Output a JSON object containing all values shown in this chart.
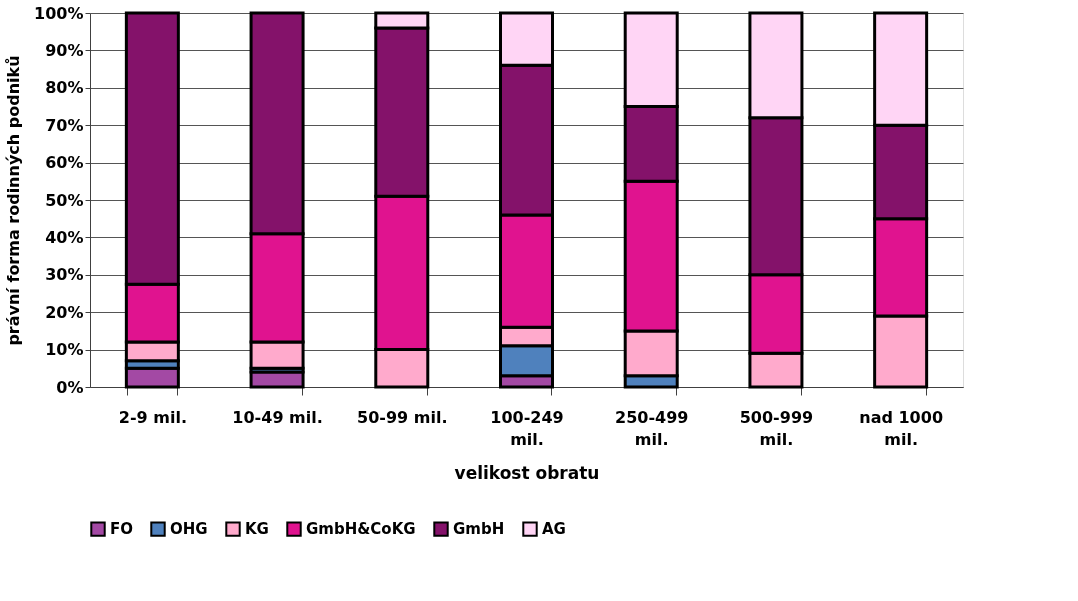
{
  "chart_data": {
    "type": "bar",
    "stacked": true,
    "xlabel": "velikost obratu",
    "ylabel": "právní forma rodinných podniků",
    "categories": [
      "2-9 mil.",
      "10-49 mil.",
      "50-99 mil.",
      "100-249 mil.",
      "250-499 mil.",
      "500-999 mil.",
      "nad 1000 mil."
    ],
    "series": [
      {
        "name": "FO",
        "color": "#a349a4",
        "values": [
          5,
          4,
          null,
          3,
          null,
          null,
          null
        ]
      },
      {
        "name": "OHG",
        "color": "#4f81bd",
        "values": [
          2,
          1,
          null,
          8,
          3,
          null,
          null
        ]
      },
      {
        "name": "KG",
        "color": "#ffaacc",
        "values": [
          5,
          7,
          10,
          5,
          12,
          9,
          19
        ]
      },
      {
        "name": "GmbH&CoKG",
        "color": "#e0138f",
        "values": [
          15.5,
          29,
          41,
          30,
          40,
          21,
          26
        ]
      },
      {
        "name": "GmbH",
        "color": "#84126a",
        "values": [
          72.5,
          59,
          45,
          40,
          20,
          42,
          25
        ]
      },
      {
        "name": "AG",
        "color": "#ffd5f5",
        "values": [
          null,
          null,
          4,
          14,
          25,
          28,
          30
        ]
      }
    ],
    "ylim": [
      0,
      100
    ],
    "yticks": [
      {
        "value": 0,
        "label": "0%"
      },
      {
        "value": 10,
        "label": "10%"
      },
      {
        "value": 20,
        "label": "20%"
      },
      {
        "value": 30,
        "label": "30%"
      },
      {
        "value": 40,
        "label": "40%"
      },
      {
        "value": 50,
        "label": "50%"
      },
      {
        "value": 60,
        "label": "60%"
      },
      {
        "value": 70,
        "label": "70%"
      },
      {
        "value": 80,
        "label": "80%"
      },
      {
        "value": 90,
        "label": "90%"
      },
      {
        "value": 100,
        "label": "100%"
      }
    ],
    "grid": "y",
    "legend": "bottom"
  }
}
